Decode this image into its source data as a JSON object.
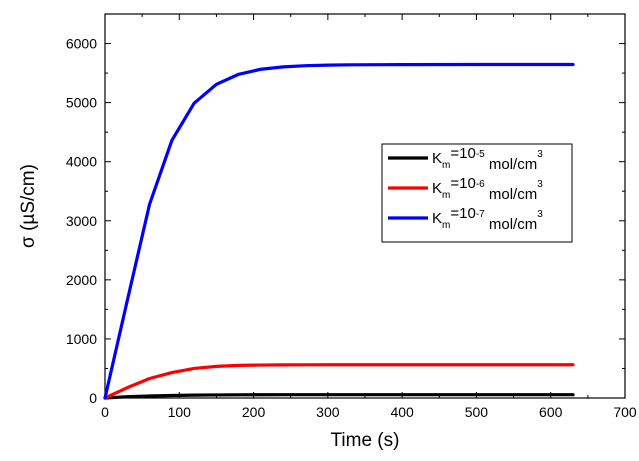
{
  "chart_data": {
    "type": "line",
    "title": "",
    "xlabel": "Time (s)",
    "ylabel": "σ (µS/cm)",
    "xlim": [
      0,
      700
    ],
    "ylim": [
      0,
      6500
    ],
    "xticks": [
      0,
      100,
      200,
      300,
      400,
      500,
      600,
      700
    ],
    "yticks": [
      0,
      1000,
      2000,
      3000,
      4000,
      5000,
      6000
    ],
    "xtick_labels": [
      "0",
      "100",
      "200",
      "300",
      "400",
      "500",
      "600",
      "700"
    ],
    "ytick_labels": [
      "0",
      "1000",
      "2000",
      "3000",
      "4000",
      "5000",
      "6000"
    ],
    "grid": false,
    "legend_position": "right-middle",
    "series": [
      {
        "base": "K",
        "sub": "m",
        "mid": "=10",
        "sup": "-5",
        "unit": " mol/cm",
        "unit_sup": "3",
        "color": "#000000",
        "x": [
          0,
          30,
          60,
          90,
          120,
          150,
          180,
          210,
          240,
          270,
          300,
          330,
          400,
          500,
          630
        ],
        "y": [
          0,
          22,
          34,
          42,
          48,
          52,
          54,
          55,
          56,
          56,
          56,
          56,
          56,
          56,
          56
        ]
      },
      {
        "base": "K",
        "sub": "m",
        "mid": "=10",
        "sup": "-6",
        "unit": " mol/cm",
        "unit_sup": "3",
        "color": "#ff0000",
        "x": [
          0,
          30,
          60,
          90,
          120,
          150,
          180,
          210,
          240,
          270,
          300,
          330,
          400,
          500,
          630
        ],
        "y": [
          0,
          175,
          330,
          430,
          500,
          535,
          552,
          558,
          561,
          562,
          563,
          563,
          563,
          563,
          563
        ]
      },
      {
        "base": "K",
        "sub": "m",
        "mid": "=10",
        "sup": "-7",
        "unit": " mol/cm",
        "unit_sup": "3",
        "color": "#0000ff",
        "x": [
          0,
          30,
          60,
          90,
          120,
          150,
          180,
          210,
          240,
          270,
          300,
          330,
          400,
          500,
          630
        ],
        "y": [
          0,
          1650,
          3280,
          4360,
          4990,
          5310,
          5480,
          5565,
          5605,
          5625,
          5635,
          5640,
          5643,
          5645,
          5645
        ]
      }
    ]
  }
}
